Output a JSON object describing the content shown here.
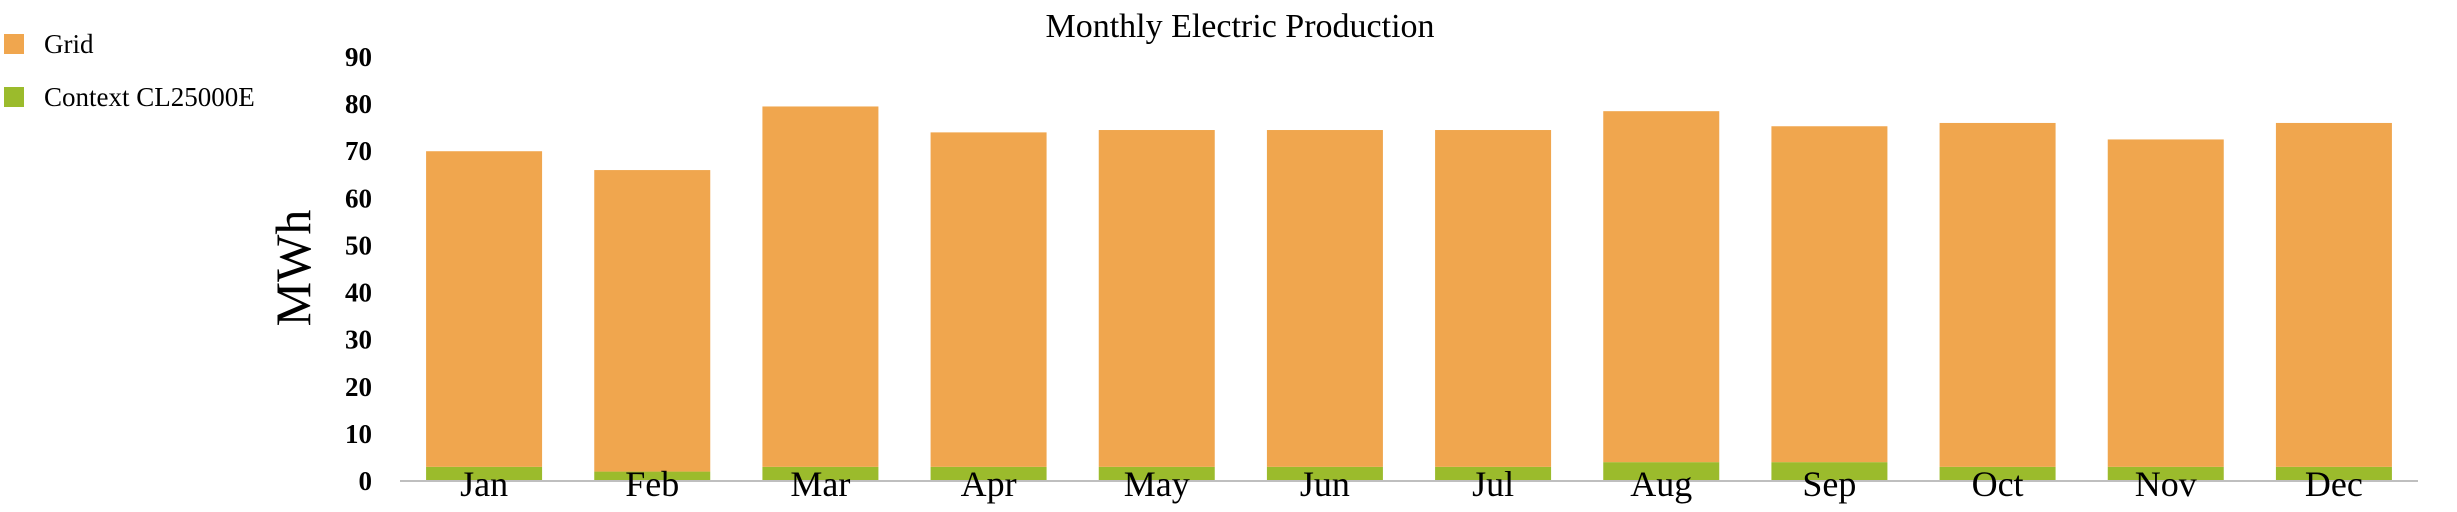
{
  "chart_data": {
    "type": "bar",
    "stacked": true,
    "title": "Monthly Electric Production",
    "xlabel": "",
    "ylabel": "MWh",
    "ylim": [
      0,
      90
    ],
    "yticks": [
      0,
      10,
      20,
      30,
      40,
      50,
      60,
      70,
      80,
      90
    ],
    "grid": false,
    "legend_position": "top-left",
    "categories": [
      "Jan",
      "Feb",
      "Mar",
      "Apr",
      "May",
      "Jun",
      "Jul",
      "Aug",
      "Sep",
      "Oct",
      "Nov",
      "Dec"
    ],
    "series": [
      {
        "name": "Context CL25000E",
        "color": "#9bbb2c",
        "values": [
          3.0,
          2.0,
          3.0,
          3.0,
          3.0,
          3.0,
          3.0,
          4.0,
          4.0,
          3.0,
          3.0,
          3.0
        ]
      },
      {
        "name": "Grid",
        "color": "#f0a64e",
        "values": [
          67.0,
          64.0,
          76.5,
          71.0,
          71.5,
          71.5,
          71.5,
          74.5,
          71.3,
          73.0,
          69.5,
          73.0
        ]
      }
    ],
    "legend": [
      "Grid",
      "Context CL25000E"
    ]
  }
}
